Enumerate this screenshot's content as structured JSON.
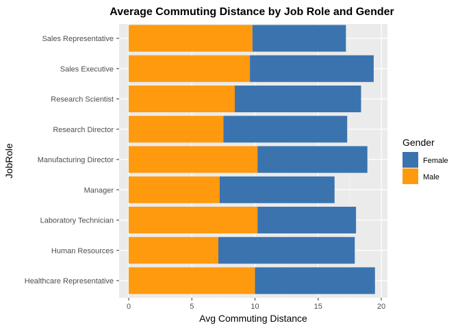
{
  "chart_data": {
    "type": "bar",
    "stacked": true,
    "orientation": "horizontal",
    "title": "Average Commuting Distance by Job Role and Gender",
    "xlabel": "Avg Commuting Distance",
    "ylabel": "JobRole",
    "xlim": [
      0,
      20
    ],
    "x_ticks": [
      0,
      5,
      10,
      15,
      20
    ],
    "grid": true,
    "legend_position": "right",
    "legend_title": "Gender",
    "categories": [
      "Healthcare Representative",
      "Human Resources",
      "Laboratory Technician",
      "Manager",
      "Manufacturing Director",
      "Research Director",
      "Research Scientist",
      "Sales Executive",
      "Sales Representative"
    ],
    "series": [
      {
        "name": "Male",
        "color": "#ff9a0e",
        "values": [
          10.0,
          7.1,
          10.2,
          7.2,
          10.2,
          7.5,
          8.4,
          9.6,
          9.8
        ]
      },
      {
        "name": "Female",
        "color": "#3b73af",
        "values": [
          9.5,
          10.8,
          7.8,
          9.1,
          8.7,
          9.8,
          10.0,
          9.8,
          7.4
        ]
      }
    ],
    "legend_order": [
      "Female",
      "Male"
    ]
  }
}
